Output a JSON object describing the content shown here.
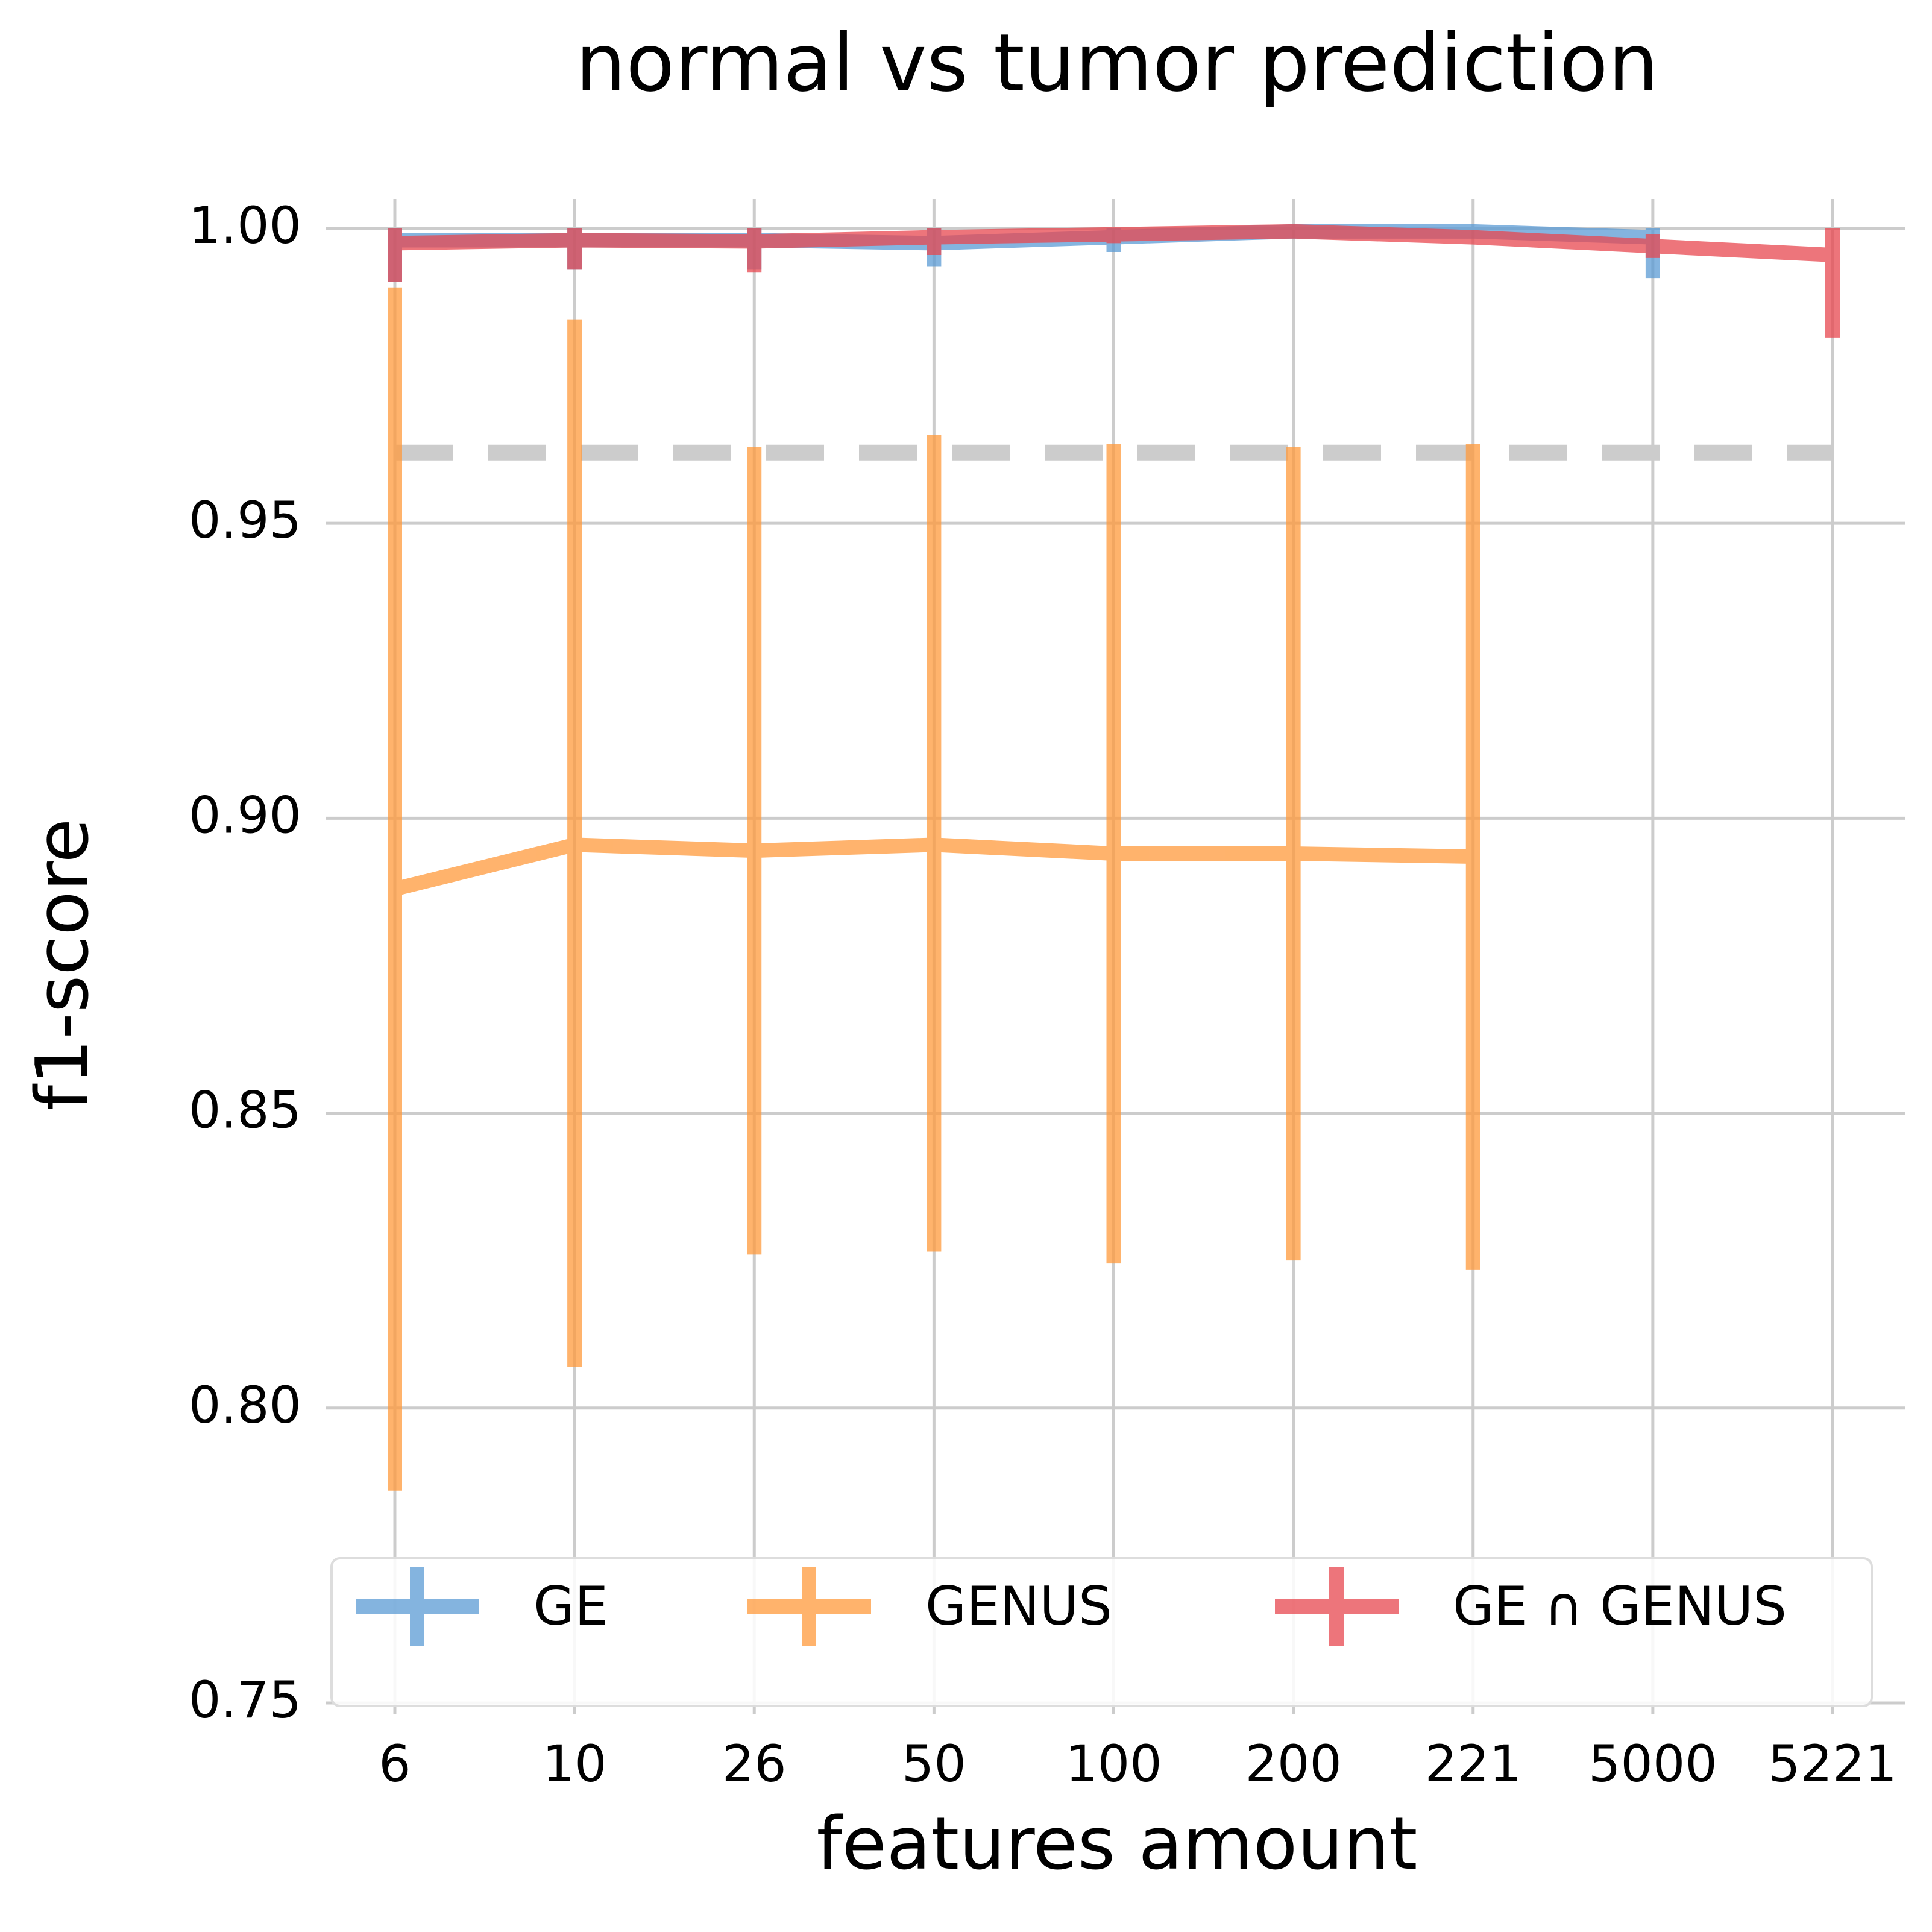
{
  "chart_data": {
    "type": "line",
    "title": "normal vs tumor prediction",
    "xlabel": "features amount",
    "ylabel": "f1-score",
    "x_categories": [
      "6",
      "10",
      "26",
      "50",
      "100",
      "200",
      "221",
      "5000",
      "5221"
    ],
    "ylim": [
      0.75,
      1.005
    ],
    "yticks": [
      0.75,
      0.8,
      0.85,
      0.9,
      0.95,
      1.0
    ],
    "ytick_labels": [
      "0.75",
      "0.80",
      "0.85",
      "0.90",
      "0.95",
      "1.00"
    ],
    "grid": true,
    "legend_placement": "bottom",
    "baseline": {
      "value": 0.962,
      "style": "dashed",
      "color": "#cccccc"
    },
    "series": [
      {
        "name": "GE",
        "color": "#5b9bd5",
        "points": [
          {
            "cat": "6",
            "y": 0.998,
            "err_low": 0.991,
            "err_high": 1.0
          },
          {
            "cat": "10",
            "y": 0.998,
            "err_low": 0.993,
            "err_high": 1.0
          },
          {
            "cat": "26",
            "y": 0.998,
            "err_low": 0.993,
            "err_high": 1.0
          },
          {
            "cat": "50",
            "y": 0.9975,
            "err_low": 0.9935,
            "err_high": 1.0
          },
          {
            "cat": "100",
            "y": 0.9985,
            "err_low": 0.996,
            "err_high": 1.0
          },
          {
            "cat": "200",
            "y": 0.9995,
            "err_low": 0.999,
            "err_high": 1.0
          },
          {
            "cat": "221",
            "y": 0.9995,
            "err_low": 0.999,
            "err_high": 1.0
          },
          {
            "cat": "5000",
            "y": 0.9985,
            "err_low": 0.9915,
            "err_high": 1.0
          }
        ]
      },
      {
        "name": "GENUS",
        "color": "#ff9a3c",
        "points": [
          {
            "cat": "6",
            "y": 0.888,
            "err_low": 0.786,
            "err_high": 0.99
          },
          {
            "cat": "10",
            "y": 0.8955,
            "err_low": 0.807,
            "err_high": 0.9845
          },
          {
            "cat": "26",
            "y": 0.8945,
            "err_low": 0.826,
            "err_high": 0.963
          },
          {
            "cat": "50",
            "y": 0.8955,
            "err_low": 0.8265,
            "err_high": 0.965
          },
          {
            "cat": "100",
            "y": 0.894,
            "err_low": 0.8245,
            "err_high": 0.9635
          },
          {
            "cat": "200",
            "y": 0.894,
            "err_low": 0.825,
            "err_high": 0.963
          },
          {
            "cat": "221",
            "y": 0.8935,
            "err_low": 0.8235,
            "err_high": 0.9635
          }
        ]
      },
      {
        "name": "GE ∩ GENUS",
        "color": "#e8474f",
        "points": [
          {
            "cat": "6",
            "y": 0.9975,
            "err_low": 0.991,
            "err_high": 1.0
          },
          {
            "cat": "10",
            "y": 0.998,
            "err_low": 0.993,
            "err_high": 1.0
          },
          {
            "cat": "26",
            "y": 0.9978,
            "err_low": 0.9925,
            "err_high": 1.0
          },
          {
            "cat": "50",
            "y": 0.9985,
            "err_low": 0.9955,
            "err_high": 1.0
          },
          {
            "cat": "100",
            "y": 0.999,
            "err_low": 0.9975,
            "err_high": 1.0
          },
          {
            "cat": "200",
            "y": 0.9995,
            "err_low": 0.999,
            "err_high": 1.0
          },
          {
            "cat": "221",
            "y": 0.9985,
            "err_low": 0.998,
            "err_high": 0.999
          },
          {
            "cat": "5000",
            "y": 0.997,
            "err_low": 0.995,
            "err_high": 0.999
          },
          {
            "cat": "5221",
            "y": 0.9955,
            "err_low": 0.9815,
            "err_high": 1.0
          }
        ]
      }
    ]
  }
}
